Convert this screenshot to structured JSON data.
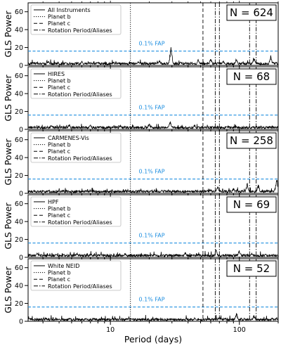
{
  "chart_data": {
    "type": "line",
    "xlabel": "Period (days)",
    "ylabel": "GLS Power",
    "xscale": "log",
    "xlim": [
      2.3,
      200
    ],
    "ylim": [
      0,
      70
    ],
    "x_ticks": [
      10,
      100
    ],
    "x_tick_labels": [
      "10",
      "100"
    ],
    "y_ticks": [
      0,
      20,
      40,
      60
    ],
    "y_tick_labels": [
      "0",
      "20",
      "40",
      "60"
    ],
    "fap_level": 16,
    "fap_label": "0.1% FAP",
    "legend_position": "top-left",
    "legend_entries": [
      "Planet b",
      "Planet c",
      "Rotation Period/Aliases"
    ],
    "colors": {
      "periodogram": "#000000",
      "fap": "#1f8fe0",
      "markers": "#000000"
    },
    "vertical_markers": {
      "planet_b": [
        14.3
      ],
      "planet_c": [
        52.2
      ],
      "rotation_aliases": [
        65,
        70,
        120,
        135
      ]
    },
    "panels": [
      {
        "name": "All Instruments",
        "count_label": "N = 624",
        "peaks": [
          {
            "period": 2.5,
            "power": 3
          },
          {
            "period": 3.3,
            "power": 5
          },
          {
            "period": 4.5,
            "power": 4
          },
          {
            "period": 6.0,
            "power": 5
          },
          {
            "period": 8.0,
            "power": 4
          },
          {
            "period": 11.5,
            "power": 3
          },
          {
            "period": 16.5,
            "power": 5
          },
          {
            "period": 24.0,
            "power": 6
          },
          {
            "period": 29.5,
            "power": 22
          },
          {
            "period": 35.0,
            "power": 4
          },
          {
            "period": 48.0,
            "power": 7
          },
          {
            "period": 60.0,
            "power": 8
          },
          {
            "period": 75.0,
            "power": 6
          },
          {
            "period": 95.0,
            "power": 8
          },
          {
            "period": 130.0,
            "power": 10
          },
          {
            "period": 175.0,
            "power": 12
          }
        ]
      },
      {
        "name": "HIRES",
        "count_label": "N = 68",
        "peaks": [
          {
            "period": 2.6,
            "power": 3
          },
          {
            "period": 3.5,
            "power": 5
          },
          {
            "period": 4.8,
            "power": 6
          },
          {
            "period": 7.0,
            "power": 5
          },
          {
            "period": 12.0,
            "power": 5
          },
          {
            "period": 20.0,
            "power": 7
          },
          {
            "period": 29.0,
            "power": 10
          },
          {
            "period": 45.0,
            "power": 5
          },
          {
            "period": 80.0,
            "power": 3
          },
          {
            "period": 120.0,
            "power": 2
          }
        ]
      },
      {
        "name": "CARMENES-Vis",
        "count_label": "N = 258",
        "peaks": [
          {
            "period": 2.8,
            "power": 2
          },
          {
            "period": 4.0,
            "power": 3
          },
          {
            "period": 6.5,
            "power": 3
          },
          {
            "period": 10.0,
            "power": 2
          },
          {
            "period": 14.0,
            "power": 3
          },
          {
            "period": 25.0,
            "power": 4
          },
          {
            "period": 40.0,
            "power": 3
          },
          {
            "period": 68.0,
            "power": 9
          },
          {
            "period": 90.0,
            "power": 6
          },
          {
            "period": 115.0,
            "power": 12
          },
          {
            "period": 140.0,
            "power": 11
          },
          {
            "period": 195.0,
            "power": 16
          }
        ]
      },
      {
        "name": "HPF",
        "count_label": "N = 69",
        "peaks": [
          {
            "period": 2.7,
            "power": 5
          },
          {
            "period": 3.8,
            "power": 4
          },
          {
            "period": 5.5,
            "power": 5
          },
          {
            "period": 8.5,
            "power": 4
          },
          {
            "period": 13.0,
            "power": 5
          },
          {
            "period": 22.0,
            "power": 4
          },
          {
            "period": 38.0,
            "power": 6
          },
          {
            "period": 66.0,
            "power": 9
          },
          {
            "period": 100.0,
            "power": 8
          },
          {
            "period": 125.0,
            "power": 5
          },
          {
            "period": 160.0,
            "power": 4
          }
        ]
      },
      {
        "name": "White NEID",
        "count_label": "N = 52",
        "peaks": [
          {
            "period": 2.5,
            "power": 2
          },
          {
            "period": 4.0,
            "power": 3
          },
          {
            "period": 7.5,
            "power": 3
          },
          {
            "period": 13.5,
            "power": 3
          },
          {
            "period": 24.0,
            "power": 3
          },
          {
            "period": 45.0,
            "power": 4
          },
          {
            "period": 70.0,
            "power": 5
          },
          {
            "period": 95.0,
            "power": 10
          },
          {
            "period": 130.0,
            "power": 7
          },
          {
            "period": 180.0,
            "power": 4
          }
        ]
      }
    ]
  }
}
